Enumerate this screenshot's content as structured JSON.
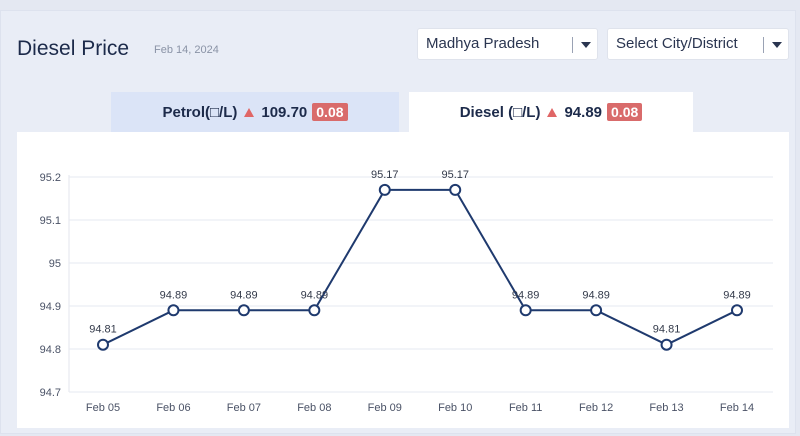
{
  "header": {
    "title": "Diesel Price",
    "date": "Feb 14, 2024"
  },
  "filters": {
    "state": "Madhya Pradesh",
    "city_placeholder": "Select City/District"
  },
  "tabs": [
    {
      "label": "Petrol(□/L)",
      "price": "109.70",
      "change": "0.08",
      "direction": "up",
      "active": false
    },
    {
      "label": "Diesel (□/L)",
      "price": "94.89",
      "change": "0.08",
      "direction": "up",
      "active": true
    }
  ],
  "colors": {
    "line": "#1f3a6e",
    "change_badge": "#d96b6b",
    "active_tab": "#ffffff",
    "inactive_tab": "#dbe4f7"
  },
  "chart_data": {
    "type": "line",
    "categories": [
      "Feb 05",
      "Feb 06",
      "Feb 07",
      "Feb 08",
      "Feb 09",
      "Feb 10",
      "Feb 11",
      "Feb 12",
      "Feb 13",
      "Feb 14"
    ],
    "values": [
      94.81,
      94.89,
      94.89,
      94.89,
      95.17,
      95.17,
      94.89,
      94.89,
      94.81,
      94.89
    ],
    "data_labels": [
      "94.81",
      "94.89",
      "94.89",
      "94.89",
      "95.17",
      "95.17",
      "94.89",
      "94.89",
      "94.81",
      "94.89"
    ],
    "yticks": [
      "94.7",
      "94.8",
      "94.9",
      "95",
      "95.1",
      "95.2"
    ],
    "ylim": [
      94.7,
      95.2
    ],
    "grid": true,
    "legend": "none"
  }
}
